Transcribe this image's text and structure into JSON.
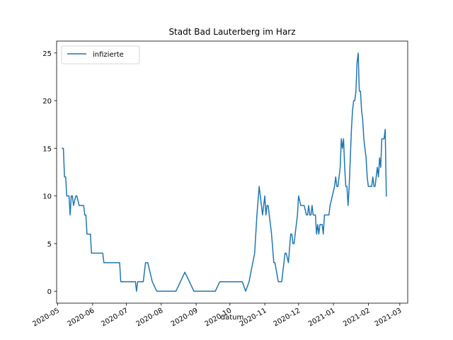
{
  "chart_data": {
    "type": "line",
    "title": "Stadt Bad Lauterberg im Harz",
    "xlabel": "datum",
    "ylabel": "",
    "ylim": [
      -1.25,
      26.25
    ],
    "xlim": [
      "2020-04-30",
      "2021-03-08"
    ],
    "x_ticks": [
      "2020-05",
      "2020-06",
      "2020-07",
      "2020-08",
      "2020-09",
      "2020-10",
      "2020-11",
      "2020-12",
      "2021-01",
      "2021-02",
      "2021-03"
    ],
    "y_ticks": [
      0,
      5,
      10,
      15,
      20,
      25
    ],
    "grid": false,
    "legend": {
      "position": "top-left",
      "entries": [
        "infizierte"
      ]
    },
    "series": [
      {
        "name": "infizierte",
        "color": "#1f77b4",
        "points": [
          [
            "2020-05-05",
            15
          ],
          [
            "2020-05-06",
            15
          ],
          [
            "2020-05-07",
            12
          ],
          [
            "2020-05-08",
            12
          ],
          [
            "2020-05-09",
            10
          ],
          [
            "2020-05-11",
            10
          ],
          [
            "2020-05-12",
            8
          ],
          [
            "2020-05-13",
            10
          ],
          [
            "2020-05-14",
            10
          ],
          [
            "2020-05-15",
            9
          ],
          [
            "2020-05-17",
            10
          ],
          [
            "2020-05-18",
            10
          ],
          [
            "2020-05-20",
            9
          ],
          [
            "2020-05-24",
            9
          ],
          [
            "2020-05-25",
            8
          ],
          [
            "2020-05-26",
            8
          ],
          [
            "2020-05-27",
            6
          ],
          [
            "2020-05-30",
            6
          ],
          [
            "2020-05-31",
            4
          ],
          [
            "2020-06-10",
            4
          ],
          [
            "2020-06-11",
            3
          ],
          [
            "2020-06-25",
            3
          ],
          [
            "2020-06-26",
            1
          ],
          [
            "2020-07-09",
            1
          ],
          [
            "2020-07-10",
            0
          ],
          [
            "2020-07-11",
            1
          ],
          [
            "2020-07-16",
            1
          ],
          [
            "2020-07-18",
            3
          ],
          [
            "2020-07-20",
            3
          ],
          [
            "2020-07-24",
            1
          ],
          [
            "2020-07-28",
            0
          ],
          [
            "2020-08-14",
            0
          ],
          [
            "2020-08-18",
            1
          ],
          [
            "2020-08-22",
            2
          ],
          [
            "2020-08-26",
            1
          ],
          [
            "2020-08-30",
            0
          ],
          [
            "2020-09-18",
            0
          ],
          [
            "2020-09-22",
            1
          ],
          [
            "2020-10-09",
            1
          ],
          [
            "2020-10-12",
            1
          ],
          [
            "2020-10-15",
            0
          ],
          [
            "2020-10-18",
            1
          ],
          [
            "2020-10-23",
            4
          ],
          [
            "2020-10-25",
            8
          ],
          [
            "2020-10-27",
            11
          ],
          [
            "2020-10-28",
            10
          ],
          [
            "2020-10-30",
            8
          ],
          [
            "2020-10-31",
            9
          ],
          [
            "2020-11-01",
            10
          ],
          [
            "2020-11-02",
            8
          ],
          [
            "2020-11-03",
            9
          ],
          [
            "2020-11-04",
            9
          ],
          [
            "2020-11-05",
            8
          ],
          [
            "2020-11-07",
            6
          ],
          [
            "2020-11-09",
            3
          ],
          [
            "2020-11-10",
            3
          ],
          [
            "2020-11-13",
            1
          ],
          [
            "2020-11-16",
            1
          ],
          [
            "2020-11-18",
            3
          ],
          [
            "2020-11-19",
            4
          ],
          [
            "2020-11-20",
            4
          ],
          [
            "2020-11-22",
            3
          ],
          [
            "2020-11-24",
            6
          ],
          [
            "2020-11-25",
            6
          ],
          [
            "2020-11-26",
            5
          ],
          [
            "2020-11-27",
            5
          ],
          [
            "2020-11-28",
            6
          ],
          [
            "2020-11-30",
            8
          ],
          [
            "2020-12-01",
            10
          ],
          [
            "2020-12-02",
            9.5
          ],
          [
            "2020-12-03",
            9
          ],
          [
            "2020-12-06",
            9
          ],
          [
            "2020-12-08",
            8
          ],
          [
            "2020-12-09",
            8
          ],
          [
            "2020-12-10",
            9
          ],
          [
            "2020-12-11",
            8
          ],
          [
            "2020-12-12",
            8
          ],
          [
            "2020-12-13",
            9
          ],
          [
            "2020-12-14",
            8
          ],
          [
            "2020-12-15",
            8
          ],
          [
            "2020-12-16",
            8
          ],
          [
            "2020-12-17",
            6
          ],
          [
            "2020-12-18",
            7
          ],
          [
            "2020-12-19",
            6
          ],
          [
            "2020-12-20",
            7
          ],
          [
            "2020-12-22",
            7
          ],
          [
            "2020-12-23",
            6
          ],
          [
            "2020-12-24",
            8
          ],
          [
            "2020-12-28",
            8
          ],
          [
            "2020-12-29",
            9
          ],
          [
            "2020-12-31",
            10
          ],
          [
            "2021-01-02",
            11
          ],
          [
            "2021-01-03",
            12
          ],
          [
            "2021-01-04",
            11
          ],
          [
            "2021-01-05",
            11
          ],
          [
            "2021-01-06",
            12
          ],
          [
            "2021-01-07",
            13
          ],
          [
            "2021-01-08",
            16
          ],
          [
            "2021-01-09",
            15
          ],
          [
            "2021-01-10",
            16
          ],
          [
            "2021-01-11",
            13
          ],
          [
            "2021-01-12",
            11
          ],
          [
            "2021-01-13",
            11
          ],
          [
            "2021-01-14",
            9
          ],
          [
            "2021-01-15",
            11
          ],
          [
            "2021-01-16",
            14
          ],
          [
            "2021-01-17",
            17
          ],
          [
            "2021-01-18",
            19
          ],
          [
            "2021-01-19",
            20
          ],
          [
            "2021-01-20",
            20
          ],
          [
            "2021-01-21",
            21
          ],
          [
            "2021-01-22",
            24
          ],
          [
            "2021-01-23",
            25
          ],
          [
            "2021-01-24",
            21
          ],
          [
            "2021-01-25",
            21
          ],
          [
            "2021-01-26",
            19
          ],
          [
            "2021-01-27",
            18
          ],
          [
            "2021-01-28",
            16
          ],
          [
            "2021-01-29",
            15
          ],
          [
            "2021-01-30",
            14
          ],
          [
            "2021-01-31",
            12
          ],
          [
            "2021-02-01",
            11
          ],
          [
            "2021-02-04",
            11
          ],
          [
            "2021-02-05",
            12
          ],
          [
            "2021-02-06",
            11
          ],
          [
            "2021-02-07",
            11
          ],
          [
            "2021-02-08",
            12
          ],
          [
            "2021-02-09",
            13
          ],
          [
            "2021-02-10",
            12
          ],
          [
            "2021-02-11",
            14
          ],
          [
            "2021-02-12",
            13
          ],
          [
            "2021-02-13",
            16
          ],
          [
            "2021-02-15",
            16
          ],
          [
            "2021-02-16",
            17
          ],
          [
            "2021-02-17",
            10
          ]
        ]
      }
    ]
  }
}
